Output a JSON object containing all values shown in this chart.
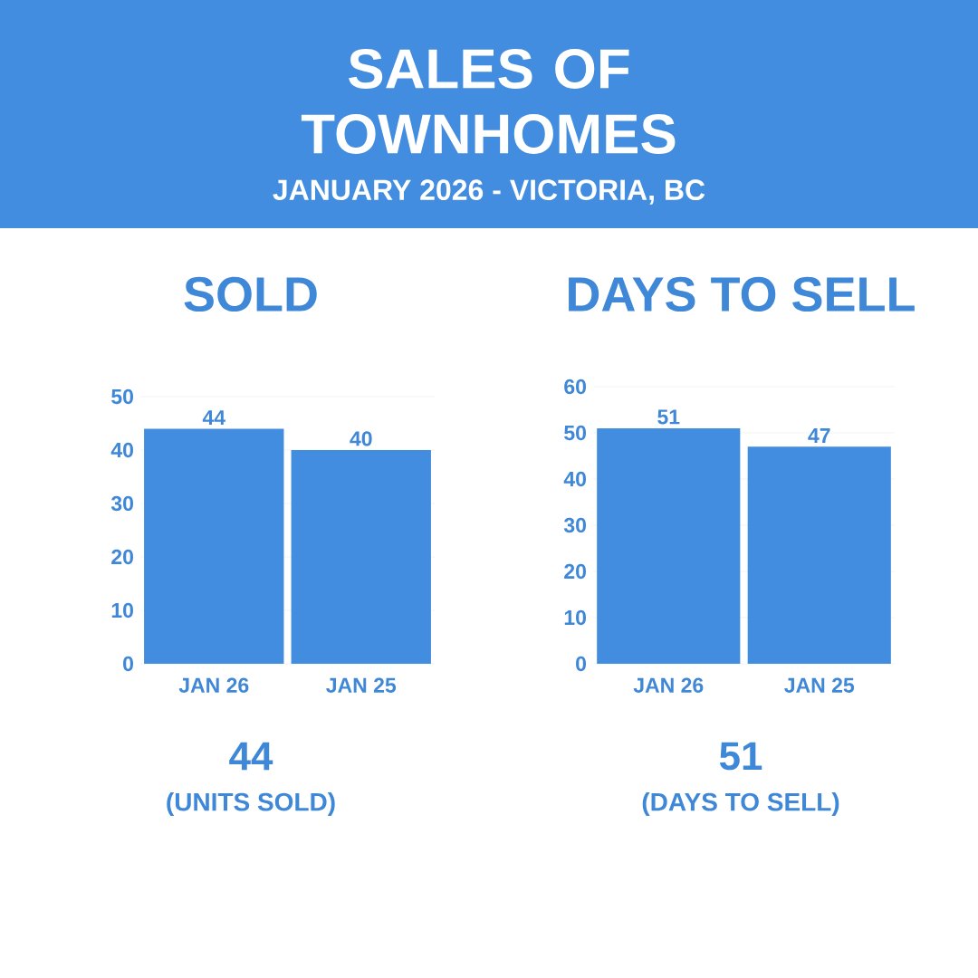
{
  "chart_data": [
    {
      "type": "bar",
      "title": "SOLD",
      "categories": [
        "JAN 26",
        "JAN 25"
      ],
      "values": [
        44,
        40
      ],
      "color": "#428ddf",
      "ylim": [
        0,
        50
      ],
      "yticks": [
        0,
        10,
        20,
        30,
        40,
        50
      ],
      "grid": "y",
      "data_labels": true,
      "annotations": [
        "SALES OF TOWNHOMES",
        "JANUARY 2026 - VICTORIA, BC",
        "44",
        "(UNITS SOLD)"
      ]
    },
    {
      "type": "bar",
      "title": "DAYS TO SELL",
      "categories": [
        "JAN 26",
        "JAN 25"
      ],
      "values": [
        51,
        47
      ],
      "color": "#428ddf",
      "ylim": [
        0,
        60
      ],
      "yticks": [
        0,
        10,
        20,
        30,
        40,
        50,
        60
      ],
      "grid": "y",
      "data_labels": true,
      "annotations": [
        "51",
        "(DAYS TO SELL)"
      ]
    }
  ]
}
